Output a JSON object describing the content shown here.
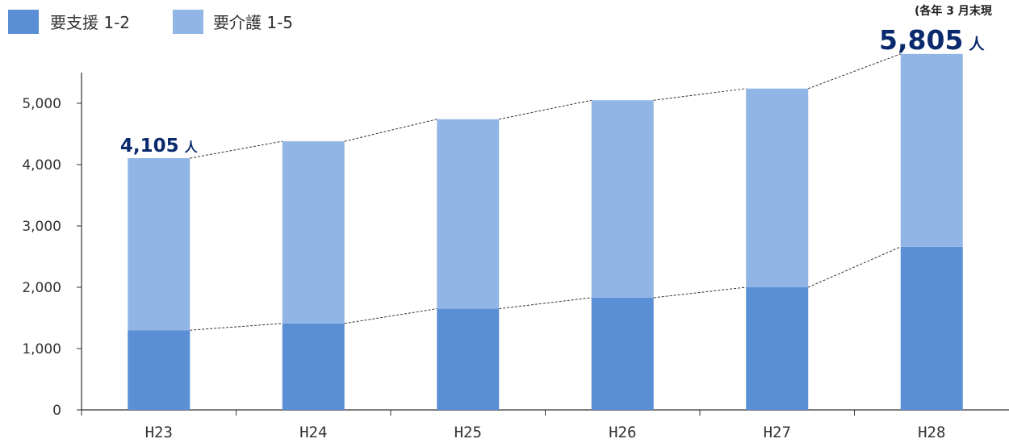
{
  "chart_data": {
    "type": "bar",
    "stacked": true,
    "categories": [
      "H23",
      "H24",
      "H25",
      "H26",
      "H27",
      "H28"
    ],
    "series": [
      {
        "name": "要支援 1-2",
        "color": "#5a8fd6",
        "values": [
          1300,
          1410,
          1650,
          1830,
          2000,
          2660
        ]
      },
      {
        "name": "要介護 1-5",
        "color": "#91b5e4",
        "values": [
          2805,
          2970,
          3090,
          3220,
          3240,
          3145
        ]
      }
    ],
    "yticks": [
      "0",
      "1,000",
      "2,000",
      "3,000",
      "4,000",
      "5,000"
    ],
    "ylim": [
      0,
      5500
    ],
    "annotations": [
      {
        "category": "H23",
        "value_text": "4,105",
        "unit": "人"
      },
      {
        "category": "H28",
        "value_text": "5,805",
        "unit": "人"
      }
    ],
    "note": "(各年 3 月末現",
    "legend": "top-left",
    "grid": false
  }
}
